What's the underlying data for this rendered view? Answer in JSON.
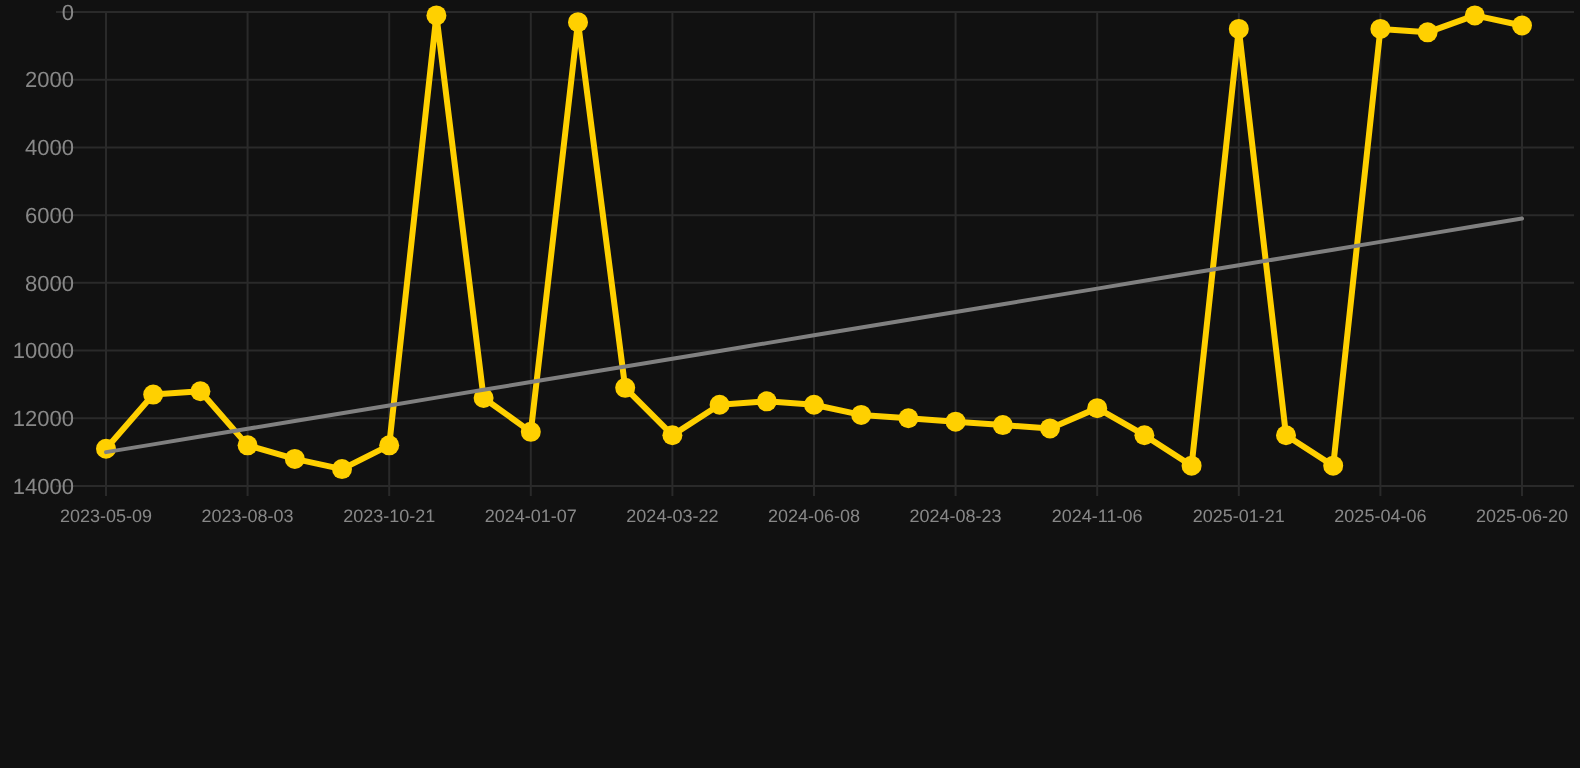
{
  "chart_data": {
    "type": "line",
    "categories": [
      "2023-05-09",
      null,
      null,
      "2023-08-03",
      null,
      null,
      "2023-10-21",
      null,
      null,
      "2024-01-07",
      null,
      null,
      "2024-03-22",
      null,
      null,
      "2024-06-08",
      null,
      null,
      "2024-08-23",
      null,
      null,
      "2024-11-06",
      null,
      null,
      "2025-01-21",
      null,
      null,
      "2025-04-06",
      null,
      null,
      "2025-06-20"
    ],
    "series": [
      {
        "color": "#ffd000",
        "marker": "circle",
        "values": [
          12900,
          11300,
          11200,
          12800,
          13200,
          13500,
          12800,
          100,
          11400,
          12400,
          300,
          11100,
          12500,
          11600,
          11500,
          11600,
          11900,
          12000,
          12100,
          12200,
          12300,
          11700,
          12500,
          13400,
          500,
          12500,
          13400,
          500,
          600,
          100,
          400
        ]
      },
      {
        "color": "#808080",
        "marker": "none",
        "values": [
          13000,
          12770,
          12540,
          12310,
          12080,
          11850,
          11620,
          11390,
          11160,
          10930,
          10700,
          10470,
          10240,
          10010,
          9780,
          9550,
          9320,
          9090,
          8860,
          8630,
          8400,
          8170,
          7940,
          7710,
          7480,
          7250,
          7020,
          6790,
          6560,
          6330,
          6100
        ]
      }
    ],
    "ylim": [
      14000,
      0
    ],
    "yticks": [
      0,
      2000,
      4000,
      6000,
      8000,
      10000,
      12000,
      14000
    ],
    "grid": true
  }
}
